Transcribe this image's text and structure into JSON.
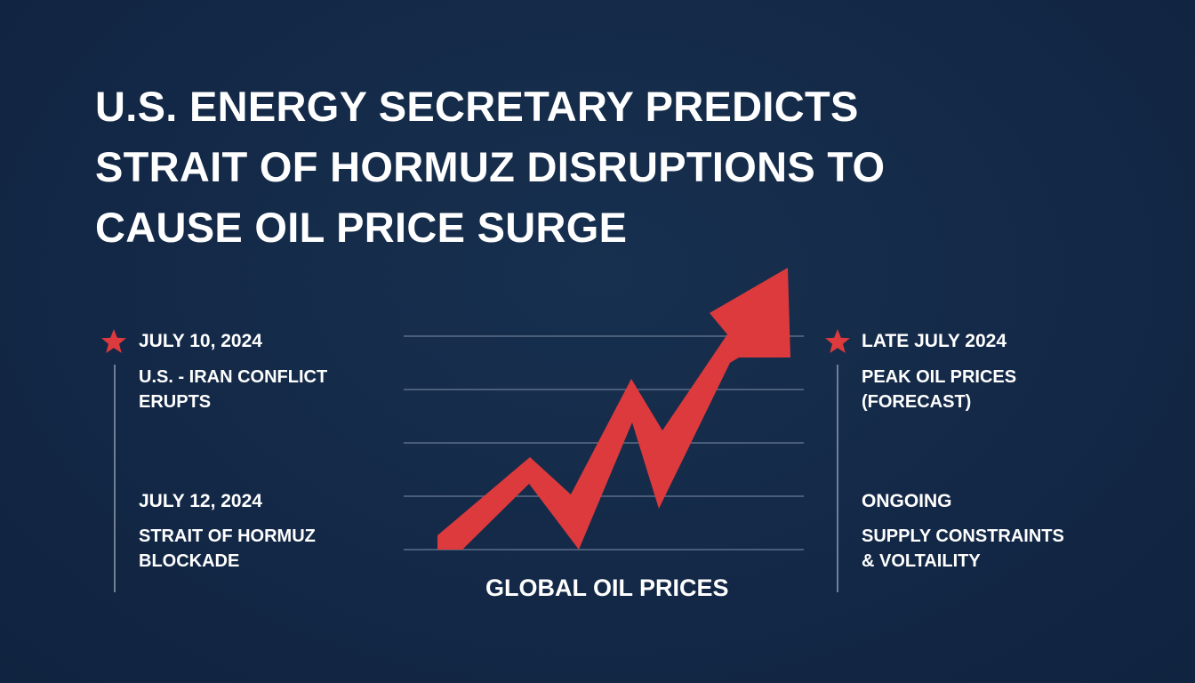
{
  "headline": {
    "lines": [
      "U.S. ENERGY SECRETARY PREDICTS",
      "STRAIT OF HORMUZ DISRUPTIONS TO",
      "CAUSE OIL PRICE SURGE"
    ]
  },
  "left_timeline": {
    "events": [
      {
        "date": "JULY 10, 2024",
        "desc_lines": [
          "U.S. - IRAN CONFLICT",
          "ERUPTS"
        ],
        "starred": true
      },
      {
        "date": "JULY 12, 2024",
        "desc_lines": [
          "STRAIT OF HORMUZ",
          "BLOCKADE"
        ],
        "starred": false
      }
    ]
  },
  "right_timeline": {
    "events": [
      {
        "date": "LATE JULY 2024",
        "desc_lines": [
          "PEAK OIL PRICES",
          "(FORECAST)"
        ],
        "starred": true
      },
      {
        "date": "ONGOING",
        "desc_lines": [
          "SUPPLY CONSTRAINTS",
          "& VOLTAILITY"
        ],
        "starred": false
      }
    ]
  },
  "chart": {
    "caption": "GLOBAL OIL PRICES",
    "trend": "rising",
    "arrow_color": "#dc3a3d",
    "gridline_color": "#5d6e88"
  },
  "colors": {
    "background": "#142a48",
    "accent_star": "#dc3a3d",
    "text": "#ffffff"
  },
  "icons": {
    "star": "star-icon",
    "arrow": "trend-arrow-icon"
  }
}
